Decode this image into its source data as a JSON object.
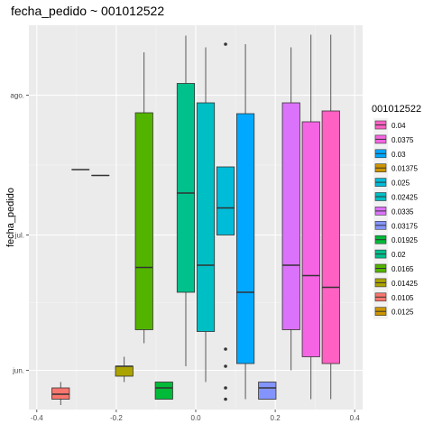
{
  "chart_data": {
    "type": "boxplot",
    "title": "fecha_pedido ~ 001012522",
    "xlabel": "",
    "ylabel": "fecha_pedido",
    "xlim": [
      -0.42,
      0.42
    ],
    "x_ticks": [
      {
        "value": -0.4,
        "label": "-0.4"
      },
      {
        "value": -0.2,
        "label": "-0.2"
      },
      {
        "value": 0.0,
        "label": "0.0"
      },
      {
        "value": 0.2,
        "label": "0.2"
      },
      {
        "value": 0.4,
        "label": "0.4"
      }
    ],
    "y_unit": "days since 1 June",
    "ylim": [
      -8.7,
      76.5
    ],
    "y_ticks": [
      {
        "value": 0,
        "label": "jun."
      },
      {
        "value": 30,
        "label": "jul."
      },
      {
        "value": 61,
        "label": "ago."
      }
    ],
    "grid": true,
    "legend": {
      "title": "001012522",
      "position": "right",
      "entries": [
        {
          "label": "0.04",
          "color": "#FF61C3"
        },
        {
          "label": "0.0375",
          "color": "#F564E3"
        },
        {
          "label": "0.03",
          "color": "#00A9FF"
        },
        {
          "label": "0.01375",
          "color": "#CD9600"
        },
        {
          "label": "0.025",
          "color": "#00BCD8"
        },
        {
          "label": "0.02425",
          "color": "#00BFC4"
        },
        {
          "label": "0.0335",
          "color": "#DB72FB"
        },
        {
          "label": "0.03175",
          "color": "#8494FF"
        },
        {
          "label": "0.01925",
          "color": "#00BA38"
        },
        {
          "label": "0.02",
          "color": "#00C08B"
        },
        {
          "label": "0.0165",
          "color": "#53B400"
        },
        {
          "label": "0.01425",
          "color": "#ABA300"
        },
        {
          "label": "0.0105",
          "color": "#F8766D"
        },
        {
          "label": "0.0125",
          "color": "#CD9600"
        }
      ]
    },
    "boxes": [
      {
        "group": "0.0105",
        "x": -0.34,
        "color": "#F8766D",
        "whisker_low": -7.7,
        "q1": -6.4,
        "median": -5.3,
        "q3": -3.9,
        "whisker_high": -2.6,
        "outliers": []
      },
      {
        "group": "0.0125",
        "x": -0.29,
        "color": "#CD9600",
        "whisker_low": 44.5,
        "q1": 44.5,
        "median": 44.5,
        "q3": 44.5,
        "whisker_high": 44.5,
        "outliers": []
      },
      {
        "group": "0.01375",
        "x": -0.24,
        "color": "#CD9600",
        "whisker_low": 43.2,
        "q1": 43.2,
        "median": 43.2,
        "q3": 43.2,
        "whisker_high": 43.2,
        "outliers": []
      },
      {
        "group": "0.01425",
        "x": -0.18,
        "color": "#ABA300",
        "whisker_low": -2.6,
        "q1": -1.3,
        "median": 0.9,
        "q3": 0.9,
        "whisker_high": 3.0,
        "outliers": []
      },
      {
        "group": "0.0165",
        "x": -0.13,
        "color": "#53B400",
        "whisker_low": 6.0,
        "q1": 9.0,
        "median": 22.8,
        "q3": 57.1,
        "whisker_high": 70.5,
        "outliers": []
      },
      {
        "group": "0.01925",
        "x": -0.08,
        "color": "#00BA38",
        "whisker_low": -6.4,
        "q1": -6.4,
        "median": -3.9,
        "q3": -2.6,
        "whisker_high": -2.6,
        "outliers": []
      },
      {
        "group": "0.02",
        "x": -0.025,
        "color": "#00C08B",
        "whisker_low": 0.9,
        "q1": 17.3,
        "median": 39.3,
        "q3": 63.6,
        "whisker_high": 74.2,
        "outliers": []
      },
      {
        "group": "0.02425",
        "x": 0.025,
        "color": "#00BFC4",
        "whisker_low": -2.6,
        "q1": 8.6,
        "median": 23.3,
        "q3": 59.3,
        "whisker_high": 71.6,
        "outliers": []
      },
      {
        "group": "0.025",
        "x": 0.075,
        "color": "#00BCD8",
        "whisker_low": 30.0,
        "q1": 30.0,
        "median": 36.0,
        "q3": 45.1,
        "whisker_high": 45.1,
        "outliers": [
          -6.4,
          -3.9,
          0.9,
          4.7,
          72.3
        ]
      },
      {
        "group": "0.03",
        "x": 0.125,
        "color": "#00A9FF",
        "whisker_low": -6.4,
        "q1": 1.5,
        "median": 17.3,
        "q3": 56.9,
        "whisker_high": 72.3,
        "outliers": []
      },
      {
        "group": "0.03175",
        "x": 0.18,
        "color": "#8494FF",
        "whisker_low": -6.4,
        "q1": -6.4,
        "median": -3.9,
        "q3": -2.6,
        "whisker_high": -2.6,
        "outliers": []
      },
      {
        "group": "0.0335",
        "x": 0.24,
        "color": "#DB72FB",
        "whisker_low": 0.0,
        "q1": 9.0,
        "median": 23.3,
        "q3": 59.3,
        "whisker_high": 71.6,
        "outliers": []
      },
      {
        "group": "0.0375",
        "x": 0.29,
        "color": "#F564E3",
        "whisker_low": -6.4,
        "q1": 3.0,
        "median": 21.0,
        "q3": 55.1,
        "whisker_high": 74.4,
        "outliers": []
      },
      {
        "group": "0.04",
        "x": 0.34,
        "color": "#FF61C3",
        "whisker_low": -6.4,
        "q1": 1.5,
        "median": 18.4,
        "q3": 57.5,
        "whisker_high": 74.4,
        "outliers": []
      }
    ]
  }
}
